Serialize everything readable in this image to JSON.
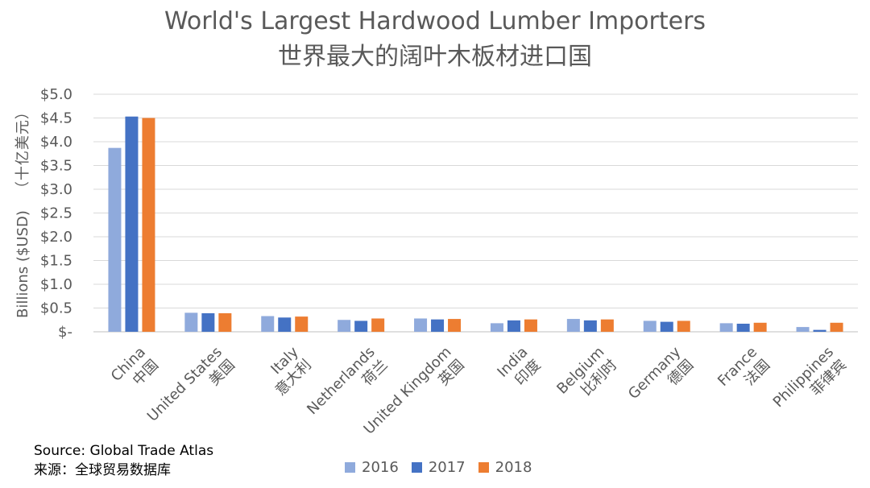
{
  "chart_data": {
    "type": "bar",
    "title": "World's Largest Hardwood Lumber Importers",
    "subtitle": "世界最大的阔叶木板材进口国",
    "ylabel": "Billions ($USD)",
    "ylabel_cn": "（十亿美元）",
    "xlabel": "",
    "ylim": [
      0,
      5.0
    ],
    "yticks": [
      0,
      0.5,
      1.0,
      1.5,
      2.0,
      2.5,
      3.0,
      3.5,
      4.0,
      4.5,
      5.0
    ],
    "ytick_labels": [
      "$-",
      "$0.5",
      "$1.0",
      "$1.5",
      "$2.0",
      "$2.5",
      "$3.0",
      "$3.5",
      "$4.0",
      "$4.5",
      "$5.0"
    ],
    "grid": true,
    "legend_position": "bottom",
    "categories": [
      "China",
      "United States",
      "Italy",
      "Netherlands",
      "United Kingdom",
      "India",
      "Belgium",
      "Germany",
      "France",
      "Philippines"
    ],
    "categories_cn": [
      "中国",
      "美国",
      "意大利",
      "荷兰",
      "英国",
      "印度",
      "比利时",
      "德国",
      "法国",
      "菲律宾"
    ],
    "series": [
      {
        "name": "2016",
        "color": "#8faadc",
        "values": [
          3.87,
          0.4,
          0.33,
          0.25,
          0.28,
          0.18,
          0.27,
          0.23,
          0.18,
          0.1
        ]
      },
      {
        "name": "2017",
        "color": "#4472c4",
        "values": [
          4.53,
          0.39,
          0.3,
          0.23,
          0.26,
          0.24,
          0.24,
          0.21,
          0.17,
          0.04
        ]
      },
      {
        "name": "2018",
        "color": "#ed7d31",
        "values": [
          4.5,
          0.39,
          0.32,
          0.28,
          0.27,
          0.26,
          0.26,
          0.23,
          0.19,
          0.19
        ]
      }
    ]
  },
  "source": {
    "line_en": "Source: Global Trade Atlas",
    "line_cn": "来源：全球贸易数据库"
  }
}
